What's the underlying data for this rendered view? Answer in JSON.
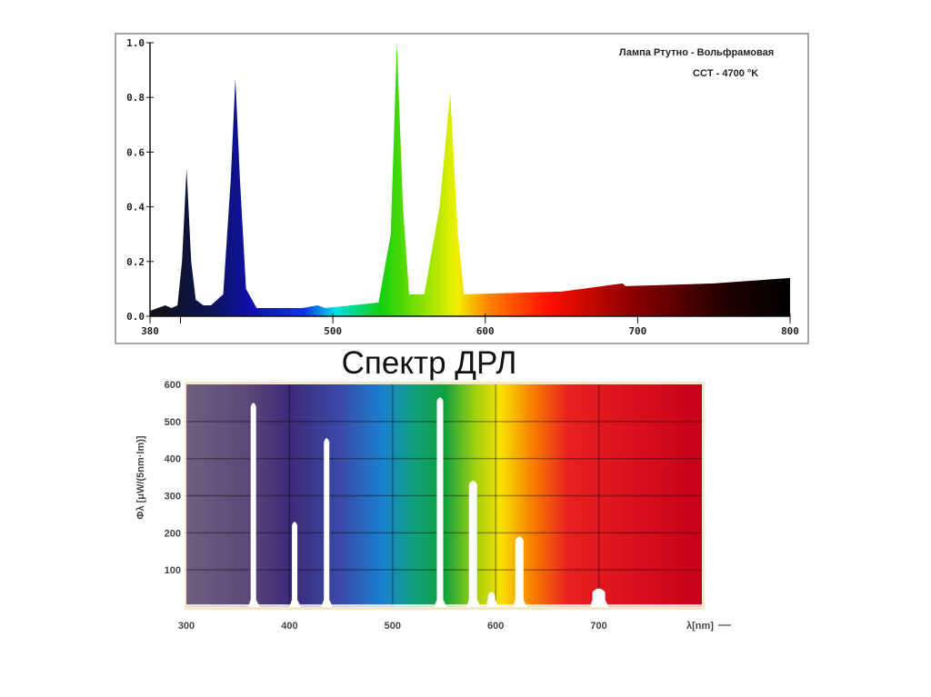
{
  "title": "Спектр ДРЛ",
  "chart_data": [
    {
      "type": "area",
      "title": "Лампа Ртутно - Вольфрамовая",
      "subtitle": "CCT - 4700 °K",
      "xlabel": "",
      "ylabel": "",
      "xlim": [
        380,
        800
      ],
      "ylim": [
        0,
        1.0
      ],
      "x_ticks": [
        380,
        500,
        600,
        700,
        800
      ],
      "x_minor_ticks": [
        400
      ],
      "y_ticks": [
        "0.0",
        "0.2",
        "0.4",
        "0.6",
        "0.8",
        "1.0"
      ],
      "points": [
        [
          380,
          0.02
        ],
        [
          385,
          0.03
        ],
        [
          390,
          0.04
        ],
        [
          394,
          0.03
        ],
        [
          398,
          0.04
        ],
        [
          401,
          0.2
        ],
        [
          404,
          0.54
        ],
        [
          407,
          0.2
        ],
        [
          410,
          0.06
        ],
        [
          415,
          0.04
        ],
        [
          420,
          0.04
        ],
        [
          428,
          0.08
        ],
        [
          433,
          0.5
        ],
        [
          436,
          0.87
        ],
        [
          439,
          0.5
        ],
        [
          443,
          0.1
        ],
        [
          450,
          0.03
        ],
        [
          480,
          0.03
        ],
        [
          490,
          0.04
        ],
        [
          495,
          0.03
        ],
        [
          530,
          0.05
        ],
        [
          538,
          0.3
        ],
        [
          542,
          1.0
        ],
        [
          546,
          0.4
        ],
        [
          550,
          0.08
        ],
        [
          560,
          0.08
        ],
        [
          570,
          0.4
        ],
        [
          577,
          0.82
        ],
        [
          582,
          0.3
        ],
        [
          586,
          0.08
        ],
        [
          650,
          0.09
        ],
        [
          690,
          0.12
        ],
        [
          692,
          0.11
        ],
        [
          750,
          0.12
        ],
        [
          800,
          0.14
        ]
      ]
    },
    {
      "type": "area",
      "title": "",
      "xlabel": "λ[nm]",
      "ylabel": "Φλ [μW/(5nm·lm)]",
      "xlim": [
        300,
        800
      ],
      "ylim": [
        0,
        600
      ],
      "x_ticks": [
        "300",
        "400",
        "500",
        "600",
        "700"
      ],
      "y_ticks": [
        "100",
        "200",
        "300",
        "400",
        "500",
        "600"
      ],
      "peaks": [
        {
          "nm": 365,
          "value": 550,
          "width": 6
        },
        {
          "nm": 405,
          "value": 230,
          "width": 6
        },
        {
          "nm": 436,
          "value": 455,
          "width": 6
        },
        {
          "nm": 546,
          "value": 565,
          "width": 7
        },
        {
          "nm": 578,
          "value": 340,
          "width": 9
        },
        {
          "nm": 596,
          "value": 40,
          "width": 8
        },
        {
          "nm": 623,
          "value": 190,
          "width": 9
        },
        {
          "nm": 700,
          "value": 50,
          "width": 14
        }
      ]
    }
  ],
  "colors": {
    "bottom_bg_left": "#6a5a7a",
    "bottom_bg_right": "#c8001a"
  }
}
